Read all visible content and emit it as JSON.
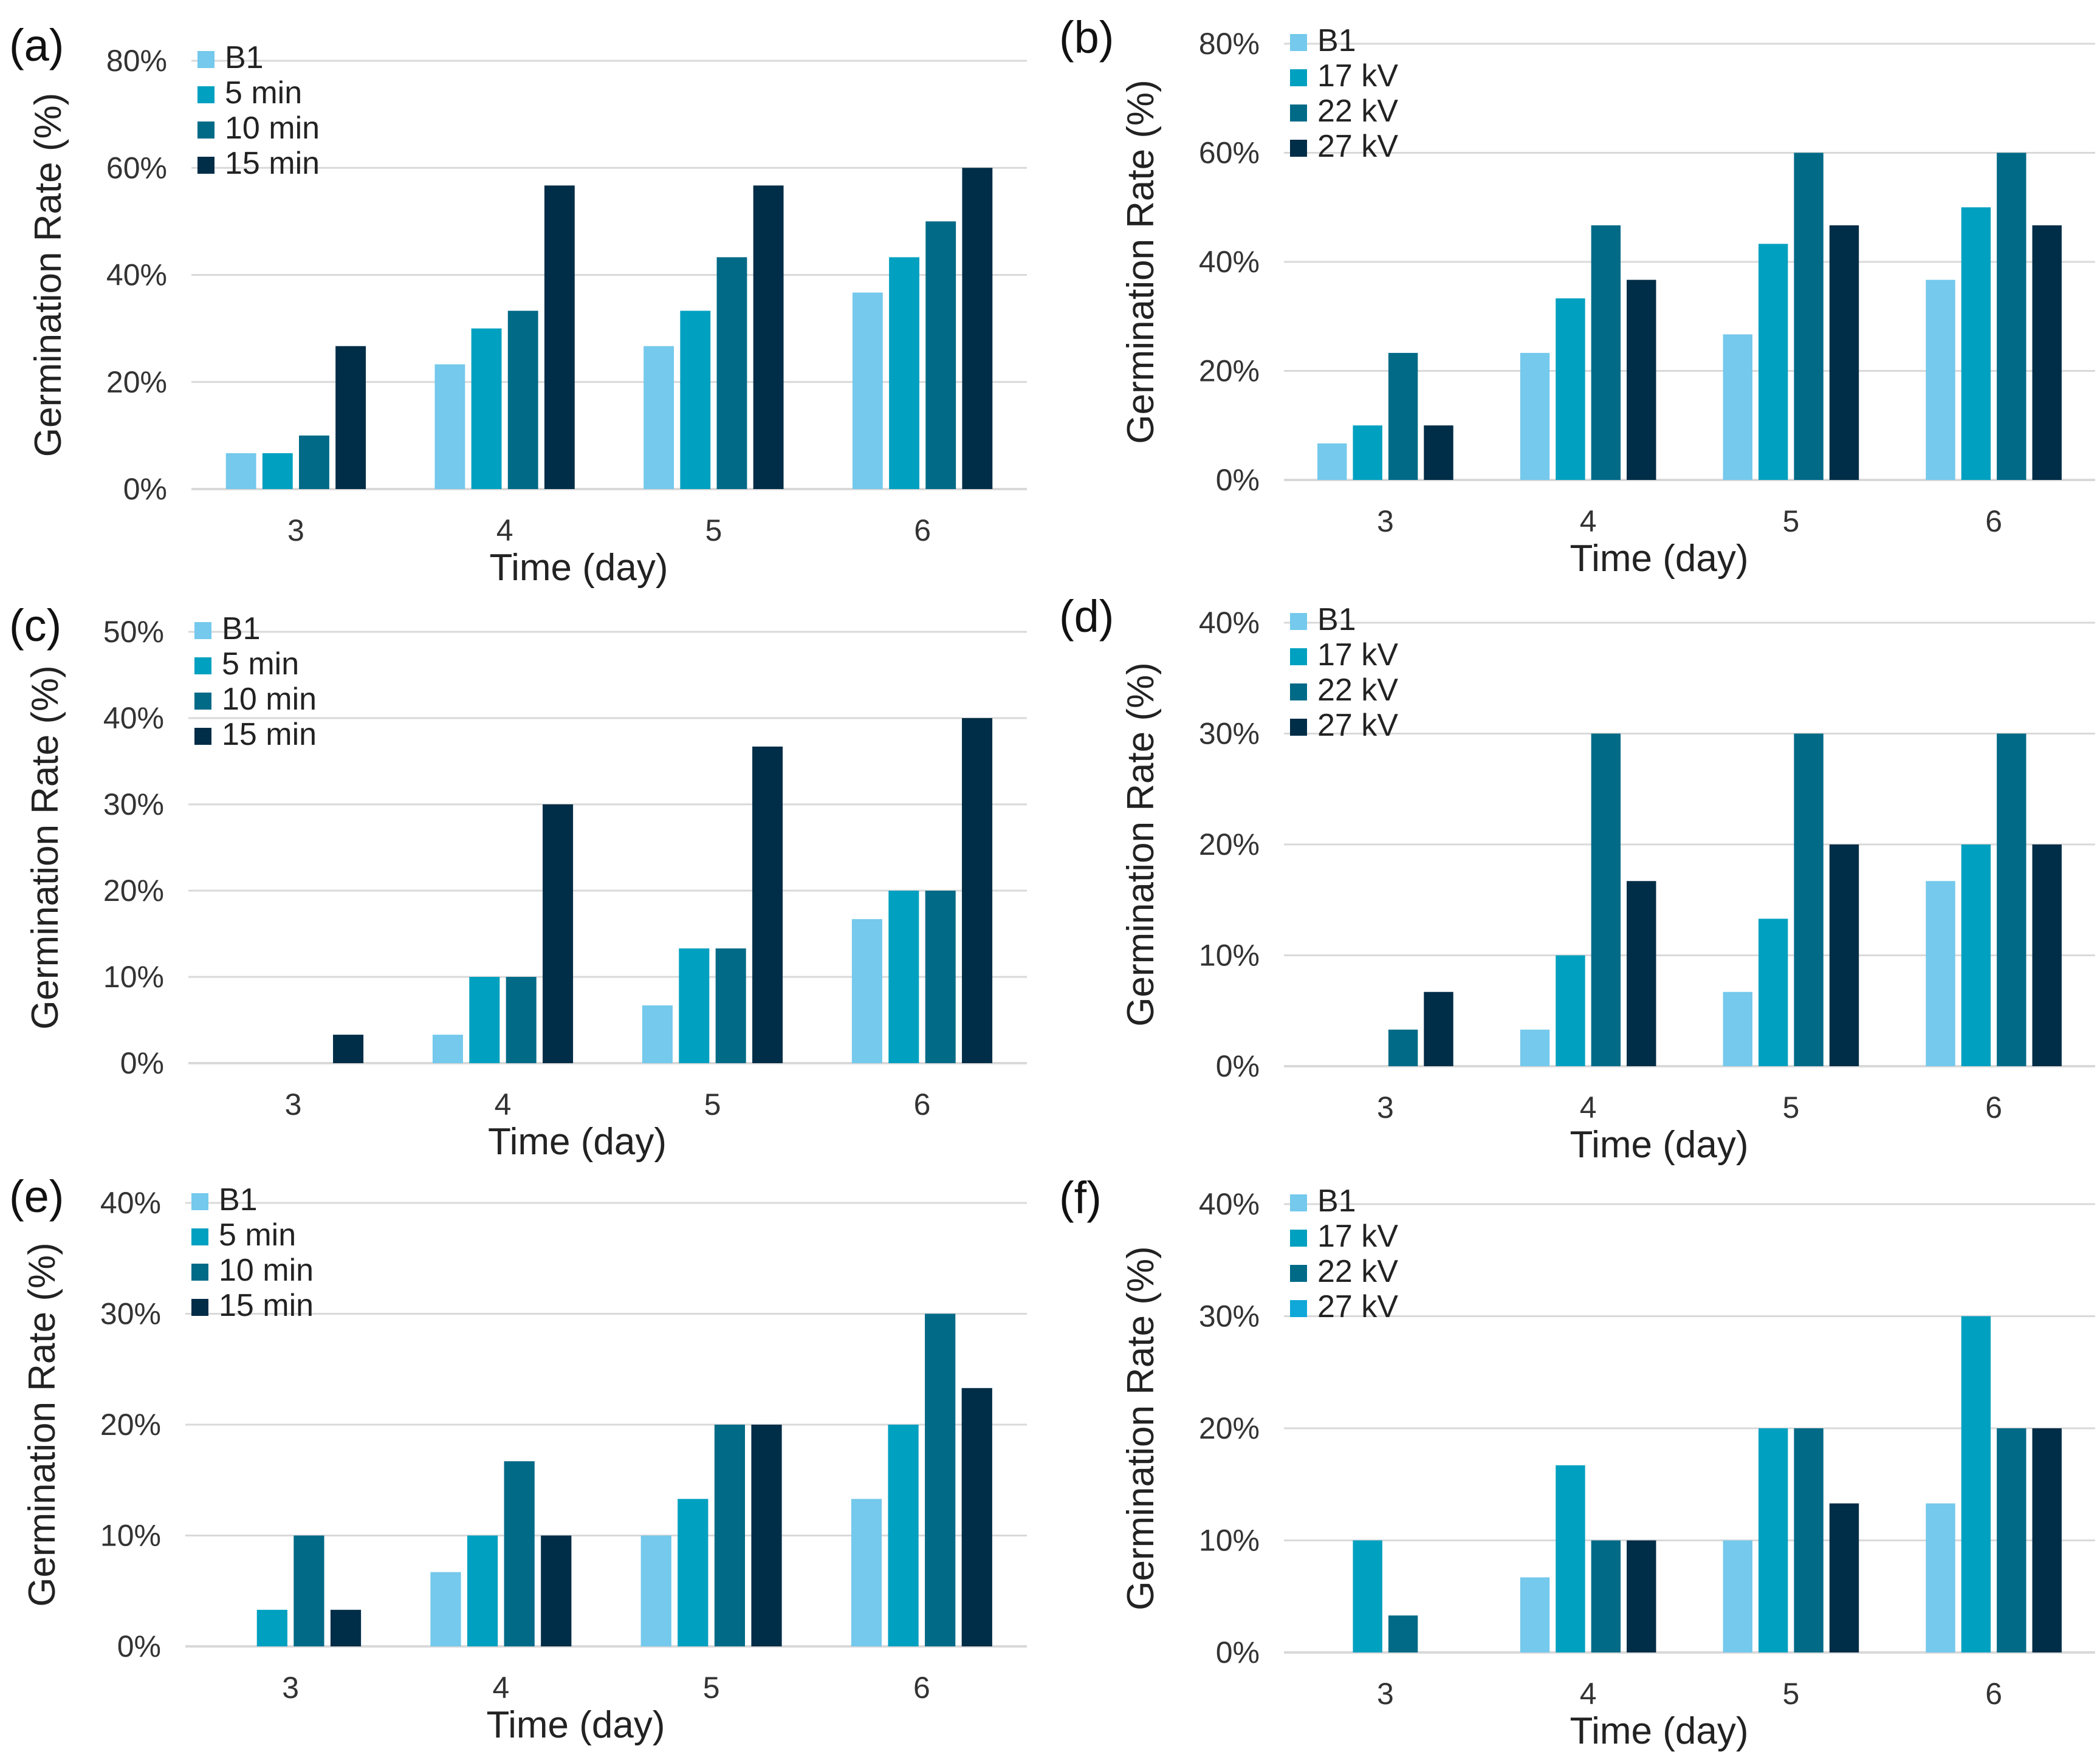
{
  "figure": {
    "colors": {
      "B1": "#74c9ec",
      "series2": "#00a0c0",
      "series3": "#006a87",
      "series4": "#002d47",
      "series4_alt": "#10a8d8",
      "grid": "#d9d9d9",
      "text": "#222222"
    }
  },
  "chart_data": [
    {
      "id": "a",
      "panel_label": "(a)",
      "type": "bar",
      "xlabel": "Time (day)",
      "ylabel": "Germination Rate (%)",
      "ylim": [
        0,
        80
      ],
      "yticks": [
        0,
        20,
        40,
        60,
        80
      ],
      "ytick_labels": [
        "0%",
        "20%",
        "40%",
        "60%",
        "80%"
      ],
      "categories": [
        "3",
        "4",
        "5",
        "6"
      ],
      "legend_position": "top-left",
      "series": [
        {
          "name": "B1",
          "color": "#74c9ec",
          "values": [
            6.7,
            23.3,
            26.7,
            36.7
          ]
        },
        {
          "name": "5 min",
          "color": "#00a0c0",
          "values": [
            6.7,
            30,
            33.3,
            43.3
          ]
        },
        {
          "name": "10 min",
          "color": "#006a87",
          "values": [
            10,
            33.3,
            43.3,
            50
          ]
        },
        {
          "name": "15 min",
          "color": "#002d47",
          "values": [
            26.7,
            56.7,
            56.7,
            60
          ]
        }
      ]
    },
    {
      "id": "b",
      "panel_label": "(b)",
      "type": "bar",
      "xlabel": "Time (day)",
      "ylabel": "Germination Rate (%)",
      "ylim": [
        0,
        80
      ],
      "yticks": [
        0,
        20,
        40,
        60,
        80
      ],
      "ytick_labels": [
        "0%",
        "20%",
        "40%",
        "60%",
        "80%"
      ],
      "categories": [
        "3",
        "4",
        "5",
        "6"
      ],
      "legend_position": "top-left",
      "series": [
        {
          "name": "B1",
          "color": "#74c9ec",
          "values": [
            6.7,
            23.3,
            26.7,
            36.7
          ]
        },
        {
          "name": "17 kV",
          "color": "#00a0c0",
          "values": [
            10,
            33.3,
            43.3,
            50
          ]
        },
        {
          "name": "22 kV",
          "color": "#006a87",
          "values": [
            23.3,
            46.7,
            60,
            60
          ]
        },
        {
          "name": "27 kV",
          "color": "#002d47",
          "values": [
            10,
            36.7,
            46.7,
            46.7
          ]
        }
      ]
    },
    {
      "id": "c",
      "panel_label": "(c)",
      "type": "bar",
      "xlabel": "Time (day)",
      "ylabel": "Germination Rate (%)",
      "ylim": [
        0,
        50
      ],
      "yticks": [
        0,
        10,
        20,
        30,
        40,
        50
      ],
      "ytick_labels": [
        "0%",
        "10%",
        "20%",
        "30%",
        "40%",
        "50%"
      ],
      "categories": [
        "3",
        "4",
        "5",
        "6"
      ],
      "legend_position": "top-left",
      "series": [
        {
          "name": "B1",
          "color": "#74c9ec",
          "values": [
            0,
            3.3,
            6.7,
            16.7
          ]
        },
        {
          "name": "5 min",
          "color": "#00a0c0",
          "values": [
            0,
            10,
            13.3,
            20
          ]
        },
        {
          "name": "10 min",
          "color": "#006a87",
          "values": [
            0,
            10,
            13.3,
            20
          ]
        },
        {
          "name": "15 min",
          "color": "#002d47",
          "values": [
            3.3,
            30,
            36.7,
            40
          ]
        }
      ]
    },
    {
      "id": "d",
      "panel_label": "(d)",
      "type": "bar",
      "xlabel": "Time (day)",
      "ylabel": "Germination Rate (%)",
      "ylim": [
        0,
        40
      ],
      "yticks": [
        0,
        10,
        20,
        30,
        40
      ],
      "ytick_labels": [
        "0%",
        "10%",
        "20%",
        "30%",
        "40%"
      ],
      "categories": [
        "3",
        "4",
        "5",
        "6"
      ],
      "legend_position": "top-left",
      "series": [
        {
          "name": "B1",
          "color": "#74c9ec",
          "values": [
            0,
            3.3,
            6.7,
            16.7
          ]
        },
        {
          "name": "17 kV",
          "color": "#00a0c0",
          "values": [
            0,
            10,
            13.3,
            20
          ]
        },
        {
          "name": "22 kV",
          "color": "#006a87",
          "values": [
            3.3,
            30,
            30,
            30
          ]
        },
        {
          "name": "27 kV",
          "color": "#002d47",
          "values": [
            6.7,
            16.7,
            20,
            20
          ]
        }
      ]
    },
    {
      "id": "e",
      "panel_label": "(e)",
      "type": "bar",
      "xlabel": "Time (day)",
      "ylabel": "Germination Rate (%)",
      "ylim": [
        0,
        40
      ],
      "yticks": [
        0,
        10,
        20,
        30,
        40
      ],
      "ytick_labels": [
        "0%",
        "10%",
        "20%",
        "30%",
        "40%"
      ],
      "categories": [
        "3",
        "4",
        "5",
        "6"
      ],
      "legend_position": "top-left",
      "series": [
        {
          "name": "B1",
          "color": "#74c9ec",
          "values": [
            0,
            6.7,
            10,
            13.3
          ]
        },
        {
          "name": "5 min",
          "color": "#00a0c0",
          "values": [
            3.3,
            10,
            13.3,
            20
          ]
        },
        {
          "name": "10 min",
          "color": "#006a87",
          "values": [
            10,
            16.7,
            20,
            30
          ]
        },
        {
          "name": "15 min",
          "color": "#002d47",
          "values": [
            3.3,
            10,
            20,
            23.3
          ]
        }
      ]
    },
    {
      "id": "f",
      "panel_label": "(f)",
      "type": "bar",
      "xlabel": "Time (day)",
      "ylabel": "Germination Rate (%)",
      "ylim": [
        0,
        40
      ],
      "yticks": [
        0,
        10,
        20,
        30,
        40
      ],
      "ytick_labels": [
        "0%",
        "10%",
        "20%",
        "30%",
        "40%"
      ],
      "categories": [
        "3",
        "4",
        "5",
        "6"
      ],
      "legend_position": "top-left",
      "series": [
        {
          "name": "B1",
          "color": "#74c9ec",
          "values": [
            0,
            6.7,
            10,
            13.3
          ]
        },
        {
          "name": "17 kV",
          "color": "#00a0c0",
          "values": [
            10,
            16.7,
            20,
            30
          ]
        },
        {
          "name": "22 kV",
          "color": "#006a87",
          "values": [
            3.3,
            10,
            20,
            20
          ]
        },
        {
          "name": "27 kV",
          "color": "#002d47",
          "legend_color": "#10a8d8",
          "values": [
            0,
            10,
            13.3,
            20
          ]
        }
      ]
    }
  ]
}
